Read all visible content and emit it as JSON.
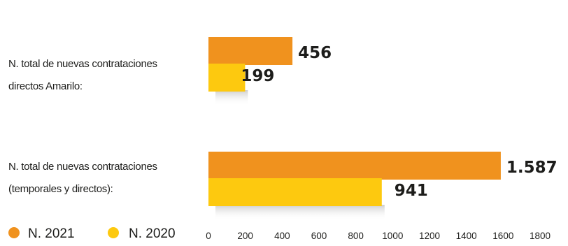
{
  "chart_data": {
    "type": "bar",
    "orientation": "horizontal",
    "categories": [
      [
        "N. total de nuevas contrataciones",
        "directos Amarilo:"
      ],
      [
        "N. total de nuevas contrataciones",
        "(temporales y directos):"
      ]
    ],
    "series": [
      {
        "name": "N. 2021",
        "color": "#f0921e",
        "values": [
          456,
          1587
        ],
        "labels": [
          "456",
          "1.587"
        ]
      },
      {
        "name": "N. 2020",
        "color": "#fdc90f",
        "values": [
          199,
          941
        ],
        "labels": [
          "199",
          "941"
        ]
      }
    ],
    "xlim": [
      0,
      1800
    ],
    "xticks": [
      "0",
      "200",
      "400",
      "600",
      "800",
      "1000",
      "1200",
      "1400",
      "1600",
      "1800"
    ],
    "grid": "vertical",
    "legend_position": "bottom-left"
  }
}
